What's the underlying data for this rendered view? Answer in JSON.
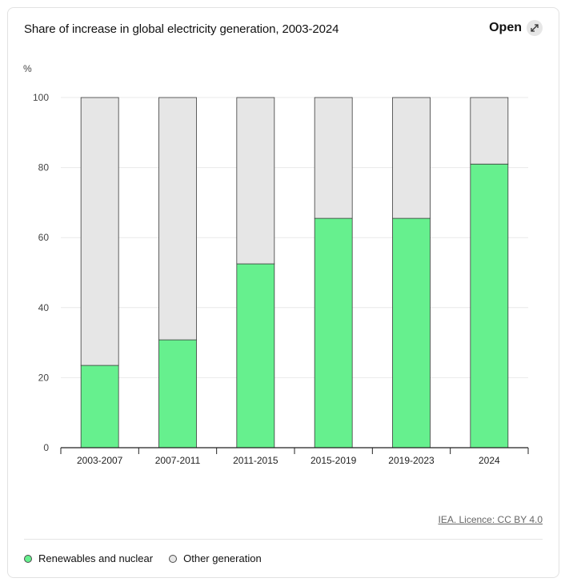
{
  "header": {
    "title": "Share of increase in global electricity generation, 2003-2024",
    "open_label": "Open",
    "open_icon": "expand-arrows-icon"
  },
  "footer": {
    "credit": "IEA. Licence: CC BY 4.0"
  },
  "colors": {
    "renewables": "#66f08e",
    "other": "#e6e6e6",
    "bar_stroke": "#3a3a3a",
    "grid": "#e9e9e9",
    "axis": "#222222",
    "tick_text": "#444444"
  },
  "legend": {
    "items": [
      {
        "label": "Renewables and nuclear",
        "color": "#66f08e"
      },
      {
        "label": "Other generation",
        "color": "#e6e6e6"
      }
    ]
  },
  "chart_data": {
    "type": "bar",
    "stacked": true,
    "title": "Share of increase in global electricity generation, 2003-2024",
    "ylabel": "%",
    "xlabel": "",
    "ylim": [
      0,
      100
    ],
    "yticks": [
      0,
      20,
      40,
      60,
      80,
      100
    ],
    "ytick_labels": [
      "0",
      "20",
      "40",
      "60",
      "80",
      "100"
    ],
    "grid": true,
    "legend_position": "bottom-left",
    "categories": [
      "2003-2007",
      "2007-2011",
      "2011-2015",
      "2015-2019",
      "2019-2023",
      "2024"
    ],
    "series": [
      {
        "name": "Renewables and nuclear",
        "values": [
          23.5,
          30.8,
          52.5,
          65.5,
          65.5,
          81
        ]
      },
      {
        "name": "Other generation",
        "values": [
          76.5,
          69.2,
          47.5,
          34.5,
          34.5,
          19
        ]
      }
    ]
  }
}
